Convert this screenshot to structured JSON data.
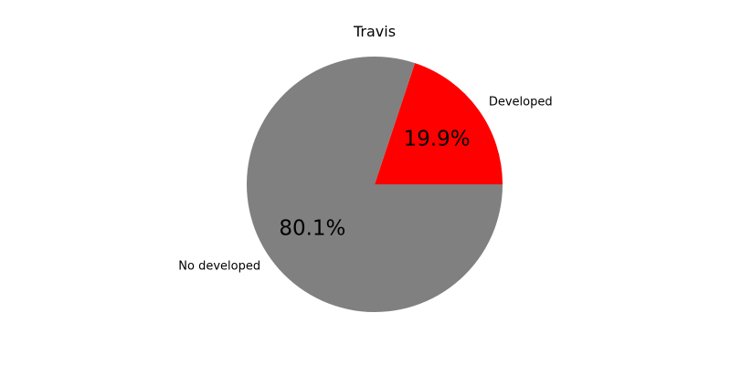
{
  "chart_data": {
    "type": "pie",
    "title": "Travis",
    "slices": [
      {
        "label": "Developed",
        "value": 19.9,
        "display": "19.9%",
        "color": "#ff0000"
      },
      {
        "label": "No developed",
        "value": 80.1,
        "display": "80.1%",
        "color": "#808080"
      }
    ],
    "start_angle_deg": 0,
    "direction": "counterclockwise",
    "legend": "none"
  }
}
